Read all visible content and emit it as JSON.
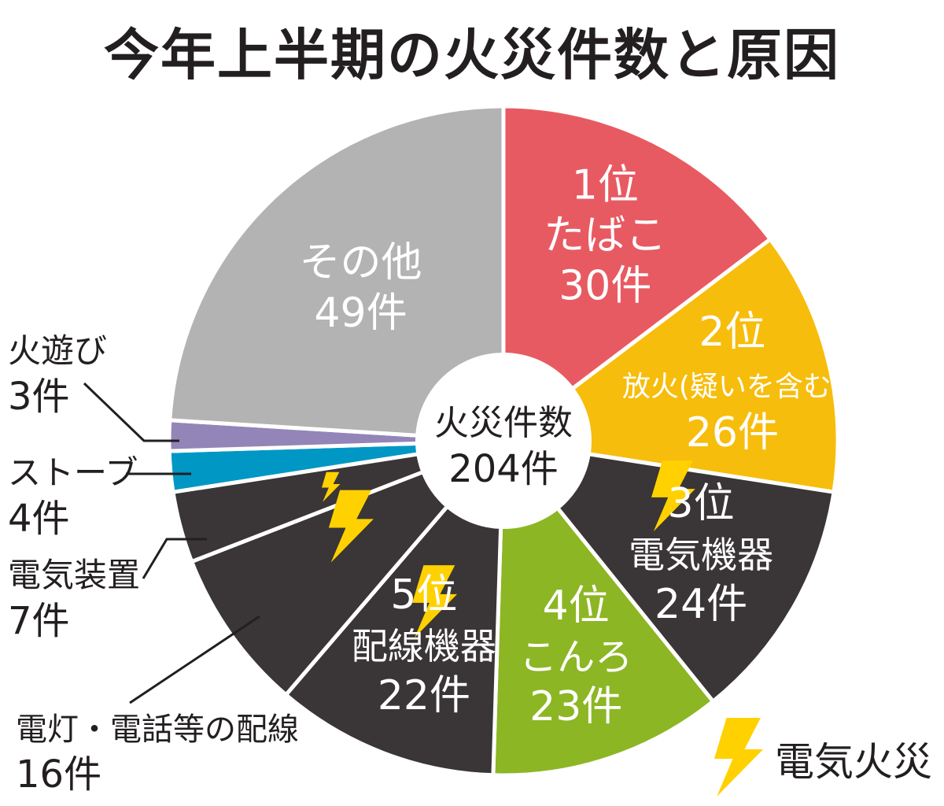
{
  "chart_data": {
    "type": "pie",
    "title": "今年上半期の火災件数と原因",
    "total_label": "火災件数",
    "total_value": "204件",
    "legend": {
      "label": "電気火災",
      "placement": "bottom-right"
    },
    "slices": [
      {
        "rank": "1位",
        "name": "たばこ",
        "value": 30,
        "count_label": "30件",
        "color": "#e85a62",
        "electric": false,
        "label_style": "inside"
      },
      {
        "rank": "2位",
        "name": "放火(疑いを含む)",
        "value": 26,
        "count_label": "26件",
        "color": "#f7bd0c",
        "electric": false,
        "label_style": "inside"
      },
      {
        "rank": "3位",
        "name": "電気機器",
        "value": 24,
        "count_label": "24件",
        "color": "#3a3536",
        "electric": true,
        "label_style": "inside"
      },
      {
        "rank": "4位",
        "name": "こんろ",
        "value": 23,
        "count_label": "23件",
        "color": "#8cb624",
        "electric": false,
        "label_style": "inside"
      },
      {
        "rank": "5位",
        "name": "配線機器",
        "value": 22,
        "count_label": "22件",
        "color": "#3a3536",
        "electric": true,
        "label_style": "inside"
      },
      {
        "rank": "",
        "name": "電灯・電話等の配線",
        "value": 16,
        "count_label": "16件",
        "color": "#3a3536",
        "electric": true,
        "label_style": "outside"
      },
      {
        "rank": "",
        "name": "電気装置",
        "value": 7,
        "count_label": "7件",
        "color": "#3a3536",
        "electric": true,
        "label_style": "outside"
      },
      {
        "rank": "",
        "name": "ストーブ",
        "value": 4,
        "count_label": "4件",
        "color": "#0097c4",
        "electric": false,
        "label_style": "outside"
      },
      {
        "rank": "",
        "name": "火遊び",
        "value": 3,
        "count_label": "3件",
        "color": "#9385b8",
        "electric": false,
        "label_style": "outside"
      },
      {
        "rank": "",
        "name": "その他",
        "value": 49,
        "count_label": "49件",
        "color": "#b3b3b3",
        "electric": false,
        "label_style": "inside"
      }
    ]
  },
  "colors": {
    "bolt": "#ffd100",
    "divider": "#ffffff",
    "text": "#231f20"
  }
}
